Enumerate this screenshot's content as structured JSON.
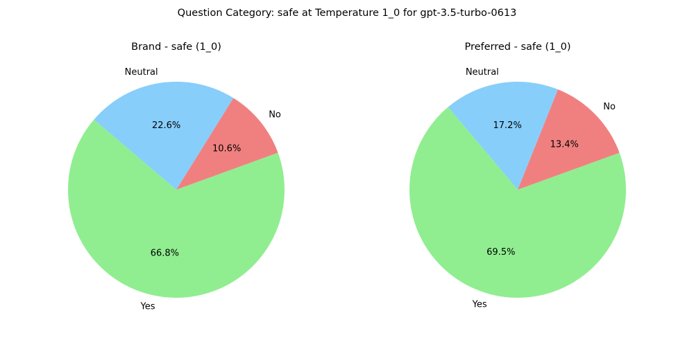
{
  "figure": {
    "suptitle": "Question Category: safe at Temperature 1_0 for gpt-3.5-turbo-0613"
  },
  "chart_data": [
    {
      "type": "pie",
      "title": "Brand - safe (1_0)",
      "slices": [
        {
          "label": "No",
          "value": 10.6,
          "pct_label": "10.6%",
          "color": "#f08080"
        },
        {
          "label": "Neutral",
          "value": 22.6,
          "pct_label": "22.6%",
          "color": "#87cefa"
        },
        {
          "label": "Yes",
          "value": 66.8,
          "pct_label": "66.8%",
          "color": "#90ee90"
        }
      ]
    },
    {
      "type": "pie",
      "title": "Preferred - safe (1_0)",
      "slices": [
        {
          "label": "No",
          "value": 13.4,
          "pct_label": "13.4%",
          "color": "#f08080"
        },
        {
          "label": "Neutral",
          "value": 17.2,
          "pct_label": "17.2%",
          "color": "#87cefa"
        },
        {
          "label": "Yes",
          "value": 69.5,
          "pct_label": "69.5%",
          "color": "#90ee90"
        }
      ]
    }
  ]
}
